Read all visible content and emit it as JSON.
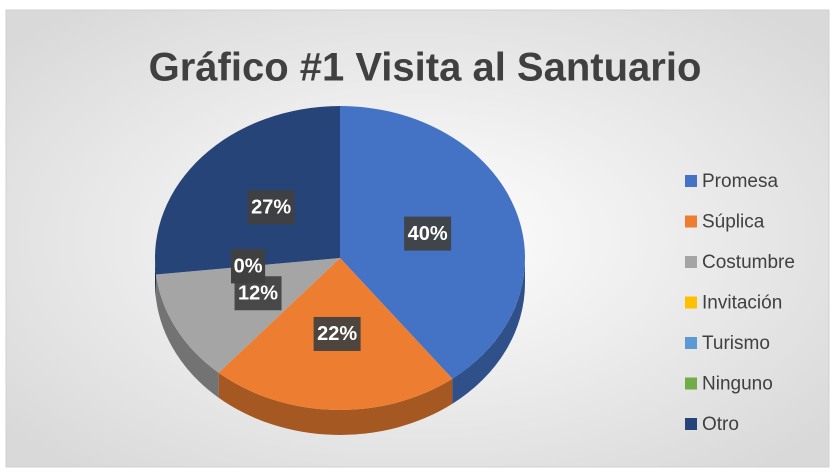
{
  "chart_data": {
    "type": "pie",
    "title": "Gráfico #1 Visita al Santuario",
    "categories": [
      "Promesa",
      "Súplica",
      "Costumbre",
      "Invitación",
      "Turismo",
      "Ninguno",
      "Otro"
    ],
    "values": [
      40,
      22,
      12,
      0,
      0,
      0,
      27
    ],
    "value_labels": [
      "40%",
      "22%",
      "12%",
      "0%",
      "0%",
      "0%",
      "27%"
    ],
    "colors": [
      "#4472c4",
      "#ed7d31",
      "#a5a5a5",
      "#ffc000",
      "#5b9bd5",
      "#70ad47",
      "#264478"
    ],
    "legend": "right"
  }
}
